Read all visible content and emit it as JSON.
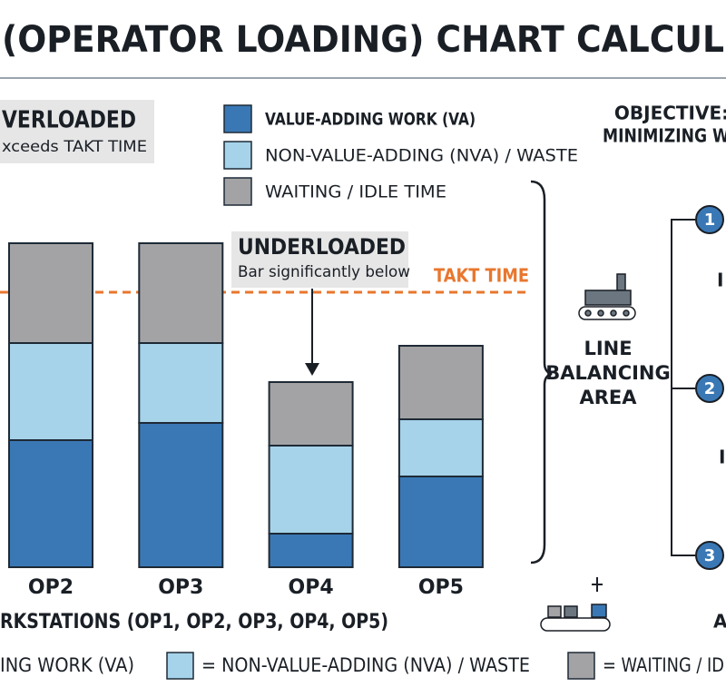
{
  "chart_data": {
    "type": "bar",
    "stacked": true,
    "title": "(OPERATOR LOADING) CHART CALCUL",
    "x_label": "RKSTATIONS (OP1, OP2, OP3, OP4, OP5)",
    "categories": [
      "OP2",
      "OP3",
      "OP4",
      "OP5"
    ],
    "series": [
      {
        "name": "VALUE-ADDING WORK (VA)",
        "color": "#3a78b5",
        "values": [
          14,
          15.9,
          3.7,
          10
        ]
      },
      {
        "name": "NON-VALUE-ADDING (NVA) / WASTE",
        "color": "#a6d3ea",
        "values": [
          10.7,
          8.8,
          9.7,
          6.3
        ]
      },
      {
        "name": "WAITING / IDLE TIME",
        "color": "#a3a3a5",
        "values": [
          11,
          11,
          7,
          8.1
        ]
      }
    ],
    "ylim": [
      0,
      36
    ],
    "takt_time": {
      "label": "TAKT TIME",
      "value": 30.3,
      "color": "#e8772e"
    },
    "overloaded": {
      "title": "VERLOADED",
      "text": "xceeds TAKT TIME"
    },
    "underloaded": {
      "title": "UNDERLOADED",
      "text": "Bar significantly below"
    },
    "bottom_legend": [
      "ING WORK (VA)",
      "= NON-VALUE-ADDING (NVA) / WASTE",
      "= WAITING / ID"
    ]
  },
  "side_panel": {
    "area_label": [
      "LINE",
      "BALANCING",
      "AREA"
    ],
    "objective": [
      "OBJECTIVE:",
      "MINIMIZING W"
    ],
    "steps": [
      "1",
      "2",
      "3"
    ],
    "fragments": [
      "I",
      "I",
      "A"
    ]
  }
}
